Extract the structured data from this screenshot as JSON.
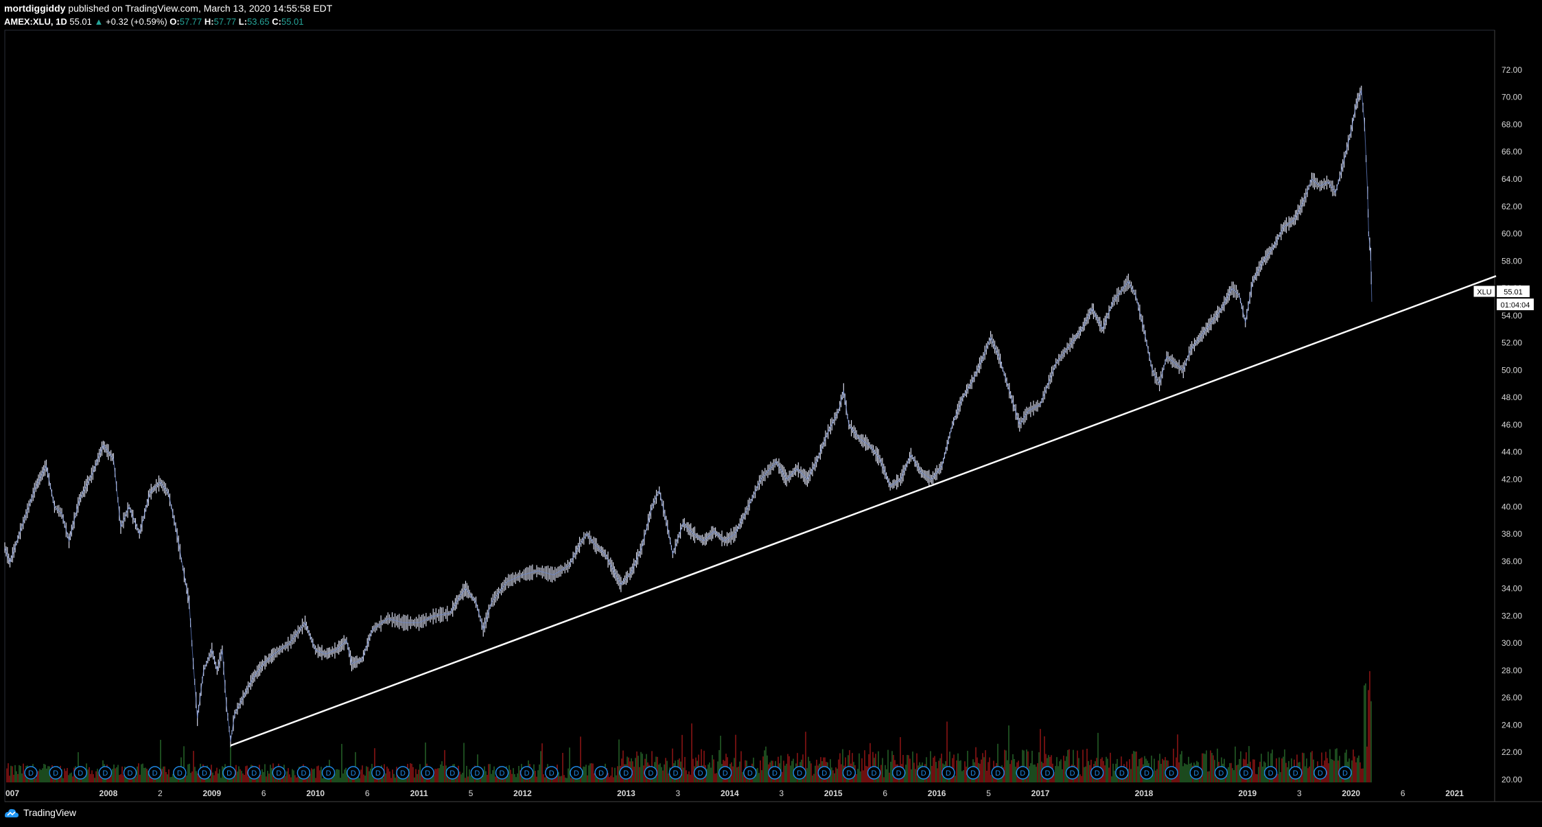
{
  "header": {
    "author": "mortdiggiddy",
    "published": "published on TradingView.com, March 13, 2020 14:55:58 EDT",
    "symbol": "AMEX:XLU, 1D",
    "last": "55.01",
    "arrow": "▲",
    "change": "+0.32 (+0.59%)",
    "o_label": "O:",
    "o_value": "57.77",
    "h_label": "H:",
    "h_value": "57.77",
    "l_label": "L:",
    "l_value": "53.65",
    "c_label": "C:",
    "c_value": "55.01"
  },
  "price_tag": {
    "symbol": "XLU",
    "value": "55.01",
    "countdown": "01:04:04"
  },
  "footer": {
    "brand": "TradingView"
  },
  "colors": {
    "background": "#000000",
    "price": "#e8ecff",
    "trendline": "#ffffff",
    "vol_up": "#2e7d32",
    "vol_down": "#b71c1c",
    "dividend": "#1e88e5",
    "up": "#26a69a"
  },
  "chart_data": {
    "type": "line",
    "title": "",
    "ylim": [
      20,
      73
    ],
    "xlim": [
      2007.0,
      2021.4
    ],
    "y_ticks": [
      "72.00",
      "70.00",
      "68.00",
      "66.00",
      "64.00",
      "62.00",
      "60.00",
      "58.00",
      "56.00",
      "54.00",
      "52.00",
      "50.00",
      "48.00",
      "46.00",
      "44.00",
      "42.00",
      "40.00",
      "38.00",
      "36.00",
      "34.00",
      "32.00",
      "30.00",
      "28.00",
      "26.00",
      "24.00",
      "22.00",
      "20.00"
    ],
    "x_ticks": [
      {
        "label": "007",
        "t": 2007.0,
        "major": true
      },
      {
        "label": "2008",
        "t": 2008.0,
        "major": true
      },
      {
        "label": "2",
        "t": 2008.5,
        "major": false
      },
      {
        "label": "2009",
        "t": 2009.0,
        "major": true
      },
      {
        "label": "6",
        "t": 2009.5,
        "major": false
      },
      {
        "label": "2010",
        "t": 2010.0,
        "major": true
      },
      {
        "label": "6",
        "t": 2010.5,
        "major": false
      },
      {
        "label": "2011",
        "t": 2011.0,
        "major": true
      },
      {
        "label": "5",
        "t": 2011.5,
        "major": false
      },
      {
        "label": "2012",
        "t": 2012.0,
        "major": true
      },
      {
        "label": "2013",
        "t": 2013.0,
        "major": true
      },
      {
        "label": "3",
        "t": 2013.5,
        "major": false
      },
      {
        "label": "2014",
        "t": 2014.0,
        "major": true
      },
      {
        "label": "3",
        "t": 2014.5,
        "major": false
      },
      {
        "label": "2015",
        "t": 2015.0,
        "major": true
      },
      {
        "label": "6",
        "t": 2015.5,
        "major": false
      },
      {
        "label": "2016",
        "t": 2016.0,
        "major": true
      },
      {
        "label": "5",
        "t": 2016.5,
        "major": false
      },
      {
        "label": "2017",
        "t": 2017.0,
        "major": true
      },
      {
        "label": "2018",
        "t": 2018.0,
        "major": true
      },
      {
        "label": "2019",
        "t": 2019.0,
        "major": true
      },
      {
        "label": "3",
        "t": 2019.5,
        "major": false
      },
      {
        "label": "2020",
        "t": 2020.0,
        "major": true
      },
      {
        "label": "6",
        "t": 2020.5,
        "major": false
      },
      {
        "label": "2021",
        "t": 2021.0,
        "major": true
      }
    ],
    "series": [
      {
        "values": [
          [
            2007.0,
            37.0
          ],
          [
            2007.05,
            35.9
          ],
          [
            2007.15,
            38.2
          ],
          [
            2007.3,
            41.5
          ],
          [
            2007.4,
            43.0
          ],
          [
            2007.48,
            40.0
          ],
          [
            2007.55,
            39.5
          ],
          [
            2007.62,
            37.5
          ],
          [
            2007.72,
            40.5
          ],
          [
            2007.85,
            42.5
          ],
          [
            2007.95,
            44.5
          ],
          [
            2008.05,
            43.5
          ],
          [
            2008.12,
            38.5
          ],
          [
            2008.2,
            40.0
          ],
          [
            2008.3,
            38.0
          ],
          [
            2008.4,
            41.0
          ],
          [
            2008.5,
            41.8
          ],
          [
            2008.58,
            41.0
          ],
          [
            2008.65,
            38.5
          ],
          [
            2008.72,
            35.5
          ],
          [
            2008.78,
            33.0
          ],
          [
            2008.82,
            28.5
          ],
          [
            2008.86,
            24.5
          ],
          [
            2008.92,
            28.0
          ],
          [
            2009.0,
            29.5
          ],
          [
            2009.05,
            28.0
          ],
          [
            2009.1,
            29.5
          ],
          [
            2009.14,
            25.5
          ],
          [
            2009.18,
            22.8
          ],
          [
            2009.22,
            24.8
          ],
          [
            2009.3,
            26.0
          ],
          [
            2009.4,
            27.5
          ],
          [
            2009.5,
            28.5
          ],
          [
            2009.6,
            29.2
          ],
          [
            2009.75,
            30.0
          ],
          [
            2009.9,
            31.5
          ],
          [
            2010.0,
            29.5
          ],
          [
            2010.1,
            29.2
          ],
          [
            2010.2,
            29.5
          ],
          [
            2010.3,
            30.2
          ],
          [
            2010.35,
            28.5
          ],
          [
            2010.45,
            28.8
          ],
          [
            2010.55,
            31.0
          ],
          [
            2010.7,
            31.8
          ],
          [
            2010.85,
            31.5
          ],
          [
            2011.0,
            31.5
          ],
          [
            2011.15,
            32.0
          ],
          [
            2011.3,
            32.2
          ],
          [
            2011.4,
            33.5
          ],
          [
            2011.45,
            34.0
          ],
          [
            2011.55,
            33.0
          ],
          [
            2011.62,
            31.0
          ],
          [
            2011.7,
            33.0
          ],
          [
            2011.85,
            34.5
          ],
          [
            2012.0,
            35.0
          ],
          [
            2012.15,
            35.3
          ],
          [
            2012.3,
            35.0
          ],
          [
            2012.45,
            35.7
          ],
          [
            2012.55,
            37.2
          ],
          [
            2012.62,
            38.0
          ],
          [
            2012.7,
            37.2
          ],
          [
            2012.8,
            36.5
          ],
          [
            2012.9,
            35.0
          ],
          [
            2012.95,
            34.3
          ],
          [
            2013.05,
            35.2
          ],
          [
            2013.15,
            37.0
          ],
          [
            2013.25,
            40.0
          ],
          [
            2013.32,
            41.2
          ],
          [
            2013.4,
            38.5
          ],
          [
            2013.45,
            36.5
          ],
          [
            2013.55,
            38.8
          ],
          [
            2013.65,
            38.0
          ],
          [
            2013.75,
            37.5
          ],
          [
            2013.85,
            38.2
          ],
          [
            2013.95,
            37.5
          ],
          [
            2014.05,
            38.0
          ],
          [
            2014.15,
            39.5
          ],
          [
            2014.3,
            42.0
          ],
          [
            2014.45,
            43.3
          ],
          [
            2014.55,
            42.0
          ],
          [
            2014.65,
            42.8
          ],
          [
            2014.75,
            42.0
          ],
          [
            2014.85,
            43.5
          ],
          [
            2014.95,
            45.5
          ],
          [
            2015.05,
            47.0
          ],
          [
            2015.1,
            48.5
          ],
          [
            2015.15,
            46.0
          ],
          [
            2015.25,
            45.0
          ],
          [
            2015.35,
            44.5
          ],
          [
            2015.45,
            43.5
          ],
          [
            2015.55,
            41.5
          ],
          [
            2015.65,
            42.0
          ],
          [
            2015.75,
            43.8
          ],
          [
            2015.85,
            42.5
          ],
          [
            2015.95,
            42.0
          ],
          [
            2016.05,
            43.0
          ],
          [
            2016.15,
            46.0
          ],
          [
            2016.25,
            48.0
          ],
          [
            2016.35,
            49.3
          ],
          [
            2016.45,
            51.0
          ],
          [
            2016.52,
            52.4
          ],
          [
            2016.6,
            51.0
          ],
          [
            2016.7,
            48.5
          ],
          [
            2016.8,
            46.0
          ],
          [
            2016.88,
            47.0
          ],
          [
            2017.0,
            47.5
          ],
          [
            2017.15,
            50.5
          ],
          [
            2017.3,
            52.0
          ],
          [
            2017.4,
            53.0
          ],
          [
            2017.5,
            54.5
          ],
          [
            2017.6,
            53.0
          ],
          [
            2017.7,
            55.0
          ],
          [
            2017.85,
            56.5
          ],
          [
            2017.92,
            55.5
          ],
          [
            2018.0,
            53.0
          ],
          [
            2018.08,
            50.0
          ],
          [
            2018.15,
            49.0
          ],
          [
            2018.22,
            51.0
          ],
          [
            2018.3,
            50.5
          ],
          [
            2018.38,
            50.0
          ],
          [
            2018.45,
            51.5
          ],
          [
            2018.55,
            52.5
          ],
          [
            2018.65,
            53.5
          ],
          [
            2018.75,
            54.5
          ],
          [
            2018.85,
            56.0
          ],
          [
            2018.92,
            55.5
          ],
          [
            2018.98,
            53.5
          ],
          [
            2019.05,
            56.5
          ],
          [
            2019.15,
            58.0
          ],
          [
            2019.25,
            59.0
          ],
          [
            2019.35,
            60.5
          ],
          [
            2019.45,
            61.0
          ],
          [
            2019.55,
            62.5
          ],
          [
            2019.62,
            64.0
          ],
          [
            2019.7,
            63.5
          ],
          [
            2019.78,
            63.8
          ],
          [
            2019.85,
            63.0
          ],
          [
            2019.92,
            65.0
          ],
          [
            2020.0,
            67.5
          ],
          [
            2020.05,
            69.5
          ],
          [
            2020.1,
            70.5
          ],
          [
            2020.13,
            68.0
          ],
          [
            2020.16,
            63.0
          ],
          [
            2020.17,
            60.0
          ],
          [
            2020.19,
            58.5
          ],
          [
            2020.2,
            55.01
          ]
        ]
      }
    ],
    "trendline": [
      [
        2009.18,
        22.5
      ],
      [
        2021.4,
        56.9
      ]
    ],
    "dividend_markers": 54,
    "dividend_marker_label": "D"
  }
}
